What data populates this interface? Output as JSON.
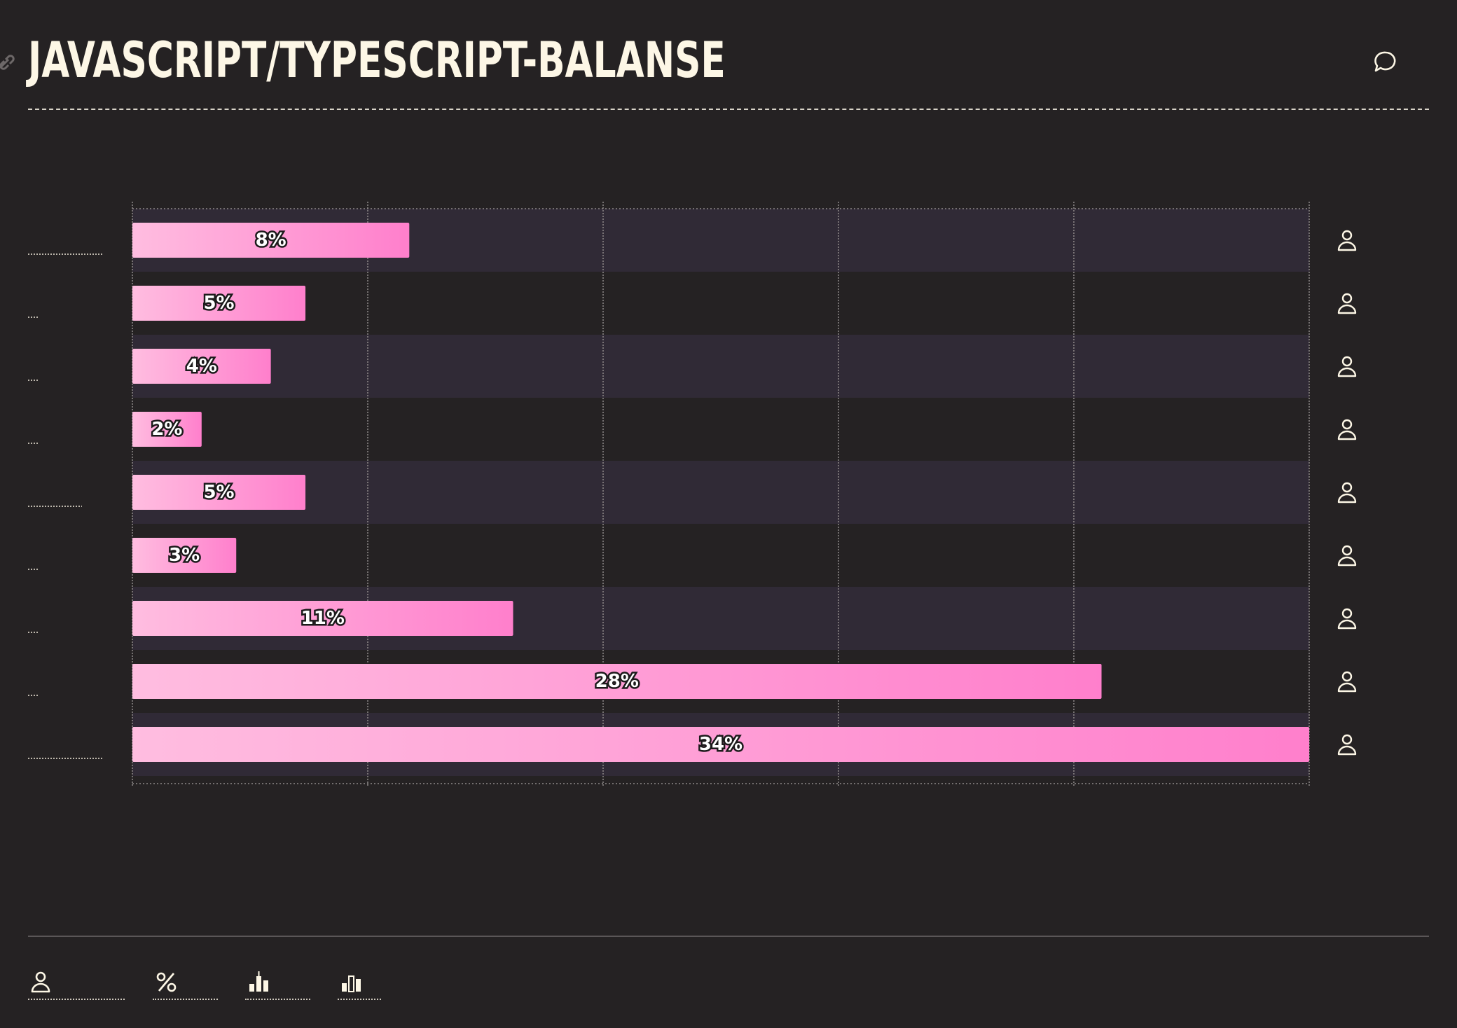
{
  "title": "JAVASCRIPT/TYPESCRIPT-BALANSE",
  "icons": {
    "link": "link-icon",
    "comment": "comment-icon",
    "row": "user-icon",
    "toolbar": [
      "user-icon",
      "percent-icon",
      "bar-chart-icon",
      "bar-chart-alt-icon"
    ]
  },
  "colors": {
    "background": "#252223",
    "band": "#302a36",
    "bar_start": "#ffbde0",
    "bar_end": "#ff7fcc",
    "text": "#fdf7e6"
  },
  "chart_data": {
    "type": "bar",
    "orientation": "horizontal",
    "categories": [
      "",
      "",
      "",
      "",
      "",
      "",
      "",
      "",
      ""
    ],
    "values": [
      8,
      5,
      4,
      2,
      5,
      3,
      11,
      28,
      34
    ],
    "value_labels": [
      "8%",
      "5%",
      "4%",
      "2%",
      "5%",
      "3%",
      "11%",
      "28%",
      "34%"
    ],
    "xlim": [
      0,
      34
    ],
    "grid": true,
    "legend": "none",
    "title": "JAVASCRIPT/TYPESCRIPT-BALANSE",
    "xlabel": "",
    "ylabel": ""
  }
}
